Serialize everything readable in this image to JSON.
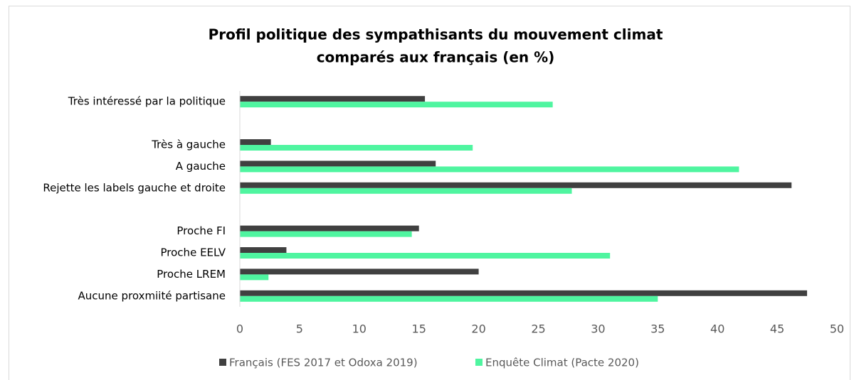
{
  "chart_data": {
    "type": "hbar",
    "title": [
      "Profil politique des sympathisants du mouvement climat",
      "comparés aux français (en %)"
    ],
    "categories": [
      "Très intéressé par la politique",
      null,
      "Très à gauche",
      "A gauche",
      "Rejette les labels gauche et droite",
      null,
      "Proche FI",
      "Proche EELV",
      "Proche LREM",
      "Aucune proxmiité partisane"
    ],
    "series": [
      {
        "name": "Français (FES 2017 et Odoxa 2019)",
        "color": "#404040",
        "values": [
          15.5,
          null,
          2.6,
          16.4,
          46.2,
          null,
          15.0,
          3.9,
          20.0,
          47.5
        ]
      },
      {
        "name": "Enquête Climat (Pacte 2020)",
        "color": "#4ff5a0",
        "values": [
          26.2,
          null,
          19.5,
          41.8,
          27.8,
          null,
          14.4,
          31.0,
          2.4,
          35.0
        ]
      }
    ],
    "xlim": [
      0,
      50
    ],
    "xticks": [
      0,
      5,
      10,
      15,
      20,
      25,
      30,
      35,
      40,
      45,
      50
    ],
    "grid": false,
    "legend": "bottom"
  }
}
